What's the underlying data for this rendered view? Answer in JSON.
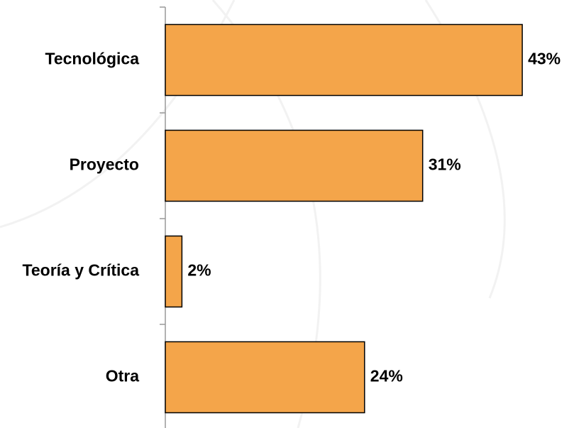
{
  "chart_data": {
    "type": "bar",
    "orientation": "horizontal",
    "categories": [
      "Tecnológica",
      "Proyecto",
      "Teoría y Crítica",
      "Otra"
    ],
    "values": [
      43,
      31,
      2,
      24
    ],
    "value_labels": [
      "43%",
      "31%",
      "2%",
      "24%"
    ],
    "color": "#f4a54a"
  }
}
